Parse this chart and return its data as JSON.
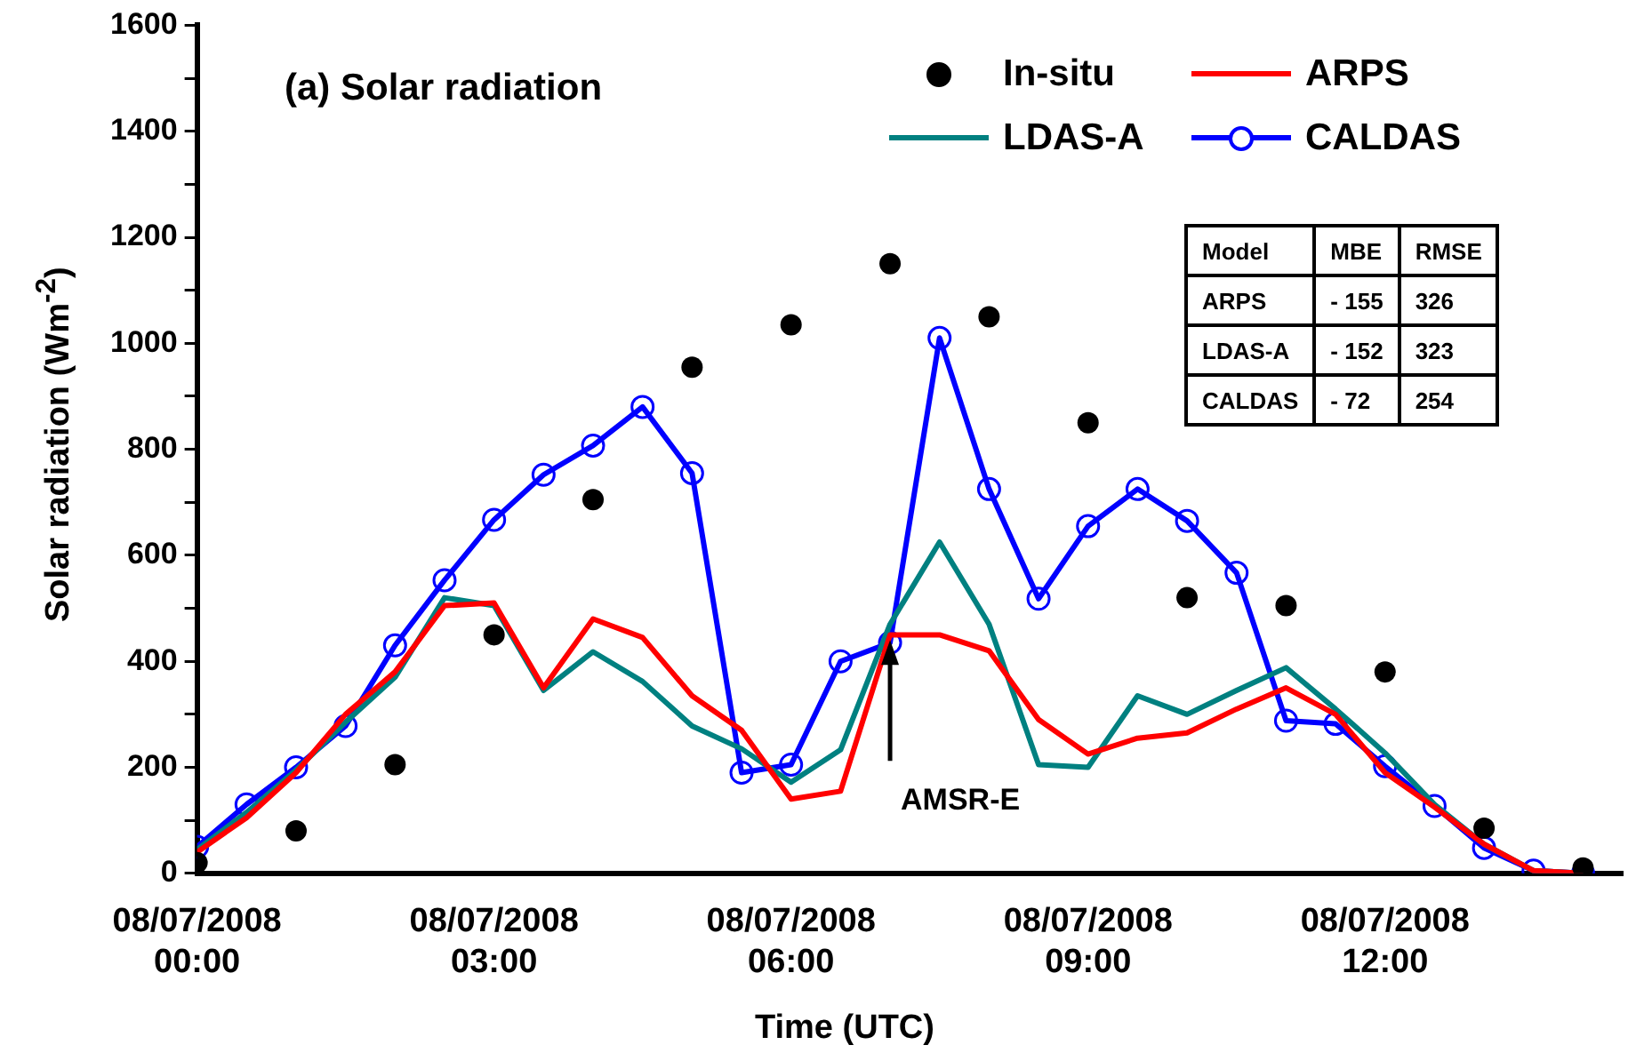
{
  "chart_data": {
    "type": "line",
    "title": "(a) Solar radiation",
    "xlabel": "Time (UTC)",
    "ylabel": "Solar radiation (Wm$^{-2}$)",
    "x": [
      "2008-07-08T00:00",
      "2008-07-08T00:30",
      "2008-07-08T01:00",
      "2008-07-08T01:30",
      "2008-07-08T02:00",
      "2008-07-08T02:30",
      "2008-07-08T03:00",
      "2008-07-08T03:30",
      "2008-07-08T04:00",
      "2008-07-08T04:30",
      "2008-07-08T05:00",
      "2008-07-08T05:30",
      "2008-07-08T06:00",
      "2008-07-08T06:30",
      "2008-07-08T07:00",
      "2008-07-08T07:30",
      "2008-07-08T08:00",
      "2008-07-08T08:30",
      "2008-07-08T09:00",
      "2008-07-08T09:30",
      "2008-07-08T10:00",
      "2008-07-08T10:30",
      "2008-07-08T11:00",
      "2008-07-08T11:30",
      "2008-07-08T12:00",
      "2008-07-08T12:30",
      "2008-07-08T13:00",
      "2008-07-08T13:30",
      "2008-07-08T14:00"
    ],
    "series": [
      {
        "name": "In-situ",
        "type": "scatter",
        "marker": "circle",
        "color": "#000000",
        "x": [
          "2008-07-08T00:00",
          "2008-07-08T01:00",
          "2008-07-08T02:00",
          "2008-07-08T03:00",
          "2008-07-08T04:00",
          "2008-07-08T05:00",
          "2008-07-08T06:00",
          "2008-07-08T07:00",
          "2008-07-08T08:00",
          "2008-07-08T09:00",
          "2008-07-08T10:00",
          "2008-07-08T11:00",
          "2008-07-08T12:00",
          "2008-07-08T13:00",
          "2008-07-08T14:00"
        ],
        "values": [
          20,
          80,
          205,
          450,
          705,
          955,
          1035,
          1150,
          1050,
          850,
          520,
          505,
          380,
          85,
          10
        ]
      },
      {
        "name": "ARPS",
        "marker": "none",
        "color": "#ff0000",
        "values": [
          40,
          105,
          190,
          300,
          380,
          505,
          510,
          350,
          480,
          445,
          335,
          270,
          140,
          155,
          450,
          450,
          420,
          290,
          225,
          255,
          265,
          310,
          350,
          300,
          190,
          125,
          55,
          5,
          0
        ]
      },
      {
        "name": "LDAS-A",
        "marker": "none",
        "color": "#008080",
        "values": [
          45,
          115,
          195,
          285,
          370,
          520,
          505,
          345,
          418,
          362,
          278,
          235,
          172,
          233,
          470,
          625,
          470,
          205,
          200,
          335,
          300,
          345,
          388,
          310,
          227,
          130,
          55,
          5,
          0
        ]
      },
      {
        "name": "CALDAS",
        "marker": "circle",
        "color": "#0000ff",
        "values": [
          50,
          130,
          200,
          278,
          430,
          553,
          667,
          752,
          807,
          880,
          755,
          190,
          205,
          400,
          435,
          1010,
          725,
          518,
          655,
          725,
          665,
          567,
          288,
          282,
          202,
          127,
          48,
          5,
          0
        ]
      }
    ],
    "xlim": [
      "2008-07-08T00:00",
      "2008-07-08T14:24"
    ],
    "xticks": [
      {
        "value": "2008-07-08T00:00",
        "label": "08/07/2008 00:00"
      },
      {
        "value": "2008-07-08T03:00",
        "label": "08/07/2008 03:00"
      },
      {
        "value": "2008-07-08T06:00",
        "label": "08/07/2008 06:00"
      },
      {
        "value": "2008-07-08T09:00",
        "label": "08/07/2008 09:00"
      },
      {
        "value": "2008-07-08T12:00",
        "label": "08/07/2008 12:00"
      }
    ],
    "ylim": [
      0,
      1600
    ],
    "yticks": [
      0,
      {
        "value": 100,
        "label": null
      },
      200,
      {
        "value": 300,
        "label": null
      },
      400,
      {
        "value": 500,
        "label": null
      },
      600,
      {
        "value": 700,
        "label": null
      },
      800,
      {
        "value": 900,
        "label": null
      },
      1000,
      {
        "value": 1100,
        "label": null
      },
      1200,
      {
        "value": 1300,
        "label": null
      },
      1400,
      {
        "value": 1500,
        "label": null
      },
      1600
    ],
    "grid": false,
    "legend": "top right",
    "line_style": "solid",
    "annotations": [
      {
        "text": "AMSR-E",
        "x": "2008-07-08T07:00",
        "y": 440
      },
      "Model",
      "MBE",
      "RMSE",
      "ARPS",
      "- 155",
      "326",
      "LDAS-A",
      "- 152",
      "323",
      "CALDAS",
      "- 72",
      "254"
    ]
  }
}
